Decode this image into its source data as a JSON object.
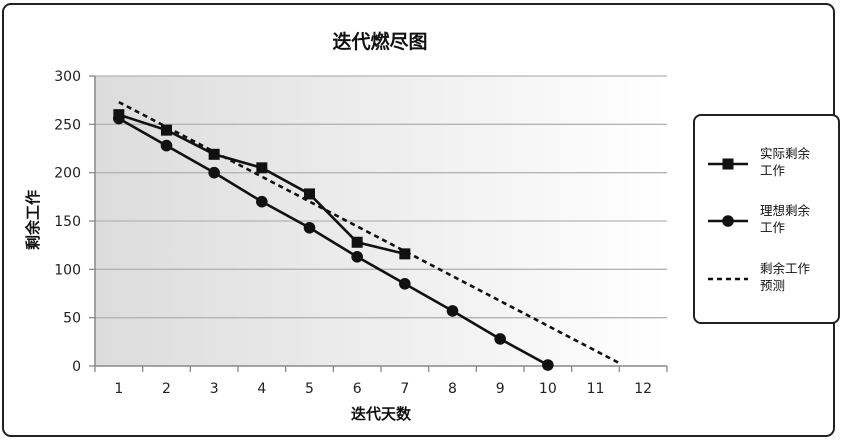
{
  "chart_data": {
    "type": "line",
    "title": "迭代燃尽图",
    "xlabel": "迭代天数",
    "ylabel": "剩余工作",
    "x_ticks": [
      1,
      2,
      3,
      4,
      5,
      6,
      7,
      8,
      9,
      10,
      11,
      12
    ],
    "y_ticks": [
      0,
      50,
      100,
      150,
      200,
      250,
      300
    ],
    "xlim": [
      0.5,
      12.5
    ],
    "ylim": [
      0,
      300
    ],
    "grid": "horizontal",
    "legend_position": "right",
    "series": [
      {
        "name": "实际剩余工作",
        "name_lines": [
          "实际剩余",
          "工作"
        ],
        "style": "solid",
        "marker": "square",
        "color": "#111111",
        "x": [
          1,
          2,
          3,
          4,
          5,
          6,
          7
        ],
        "y": [
          260,
          244,
          219,
          205,
          178,
          128,
          116
        ]
      },
      {
        "name": "理想剩余工作",
        "name_lines": [
          "理想剩余",
          "工作"
        ],
        "style": "solid",
        "marker": "circle",
        "color": "#111111",
        "x": [
          1,
          2,
          3,
          4,
          5,
          6,
          7,
          8,
          9,
          10
        ],
        "y": [
          256,
          228,
          200,
          170,
          143,
          113,
          85,
          57,
          28,
          1
        ]
      },
      {
        "name": "剩余工作预测",
        "name_lines": [
          "剩余工作",
          "预测"
        ],
        "style": "dashed",
        "marker": "none",
        "color": "#111111",
        "x": [
          1,
          11.5
        ],
        "y": [
          273,
          3
        ]
      }
    ]
  }
}
